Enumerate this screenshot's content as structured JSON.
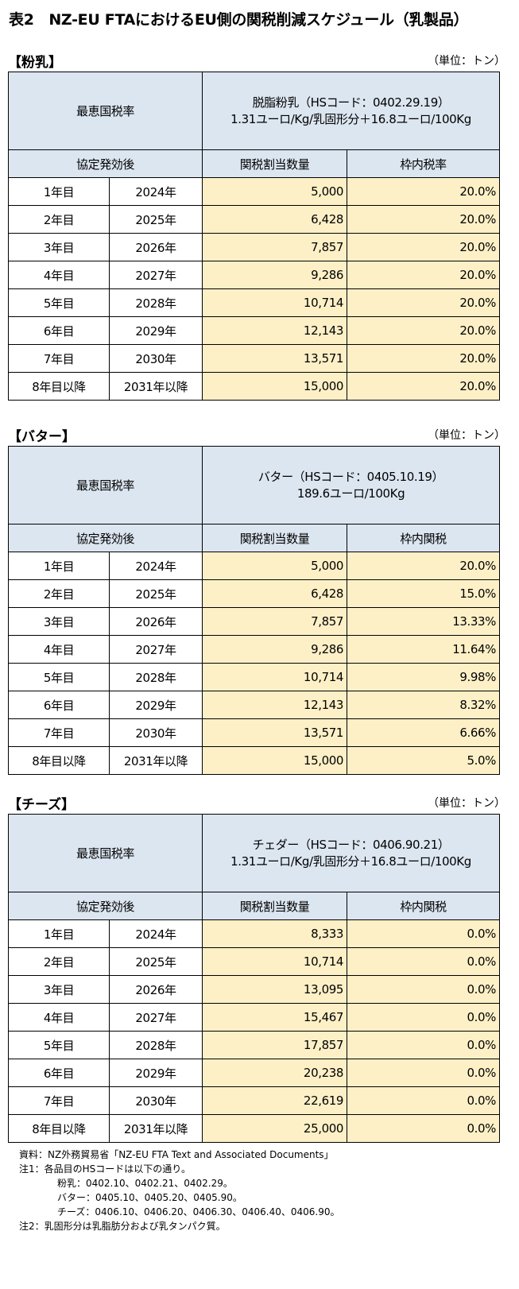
{
  "title": "表2　NZ-EU FTAにおけるEU側の関税削減スケジュール（乳製品）",
  "sections": [
    {
      "heading": "【粉乳】",
      "unit": "（単位：トン）",
      "mfn_label": "最恵国税率",
      "desc_line1": "脱脂粉乳（HSコード：0402.29.19）",
      "desc_line2": "1.31ユーロ/Kg/乳固形分＋16.8ユーロ/100Kg",
      "col_period": "協定発効後",
      "col_quota": "関税割当数量",
      "col_rate": "枠内税率",
      "rows": [
        {
          "year_no": "1年目",
          "year": "2024年",
          "quota": "5,000",
          "rate": "20.0%"
        },
        {
          "year_no": "2年目",
          "year": "2025年",
          "quota": "6,428",
          "rate": "20.0%"
        },
        {
          "year_no": "3年目",
          "year": "2026年",
          "quota": "7,857",
          "rate": "20.0%"
        },
        {
          "year_no": "4年目",
          "year": "2027年",
          "quota": "9,286",
          "rate": "20.0%"
        },
        {
          "year_no": "5年目",
          "year": "2028年",
          "quota": "10,714",
          "rate": "20.0%"
        },
        {
          "year_no": "6年目",
          "year": "2029年",
          "quota": "12,143",
          "rate": "20.0%"
        },
        {
          "year_no": "7年目",
          "year": "2030年",
          "quota": "13,571",
          "rate": "20.0%"
        },
        {
          "year_no": "8年目以降",
          "year": "2031年以降",
          "quota": "15,000",
          "rate": "20.0%"
        }
      ]
    },
    {
      "heading": "【バター】",
      "unit": "（単位：トン）",
      "mfn_label": "最恵国税率",
      "desc_line1": "バター（HSコード：0405.10.19）",
      "desc_line2": "189.6ユーロ/100Kg",
      "col_period": "協定発効後",
      "col_quota": "関税割当数量",
      "col_rate": "枠内関税",
      "rows": [
        {
          "year_no": "1年目",
          "year": "2024年",
          "quota": "5,000",
          "rate": "20.0%"
        },
        {
          "year_no": "2年目",
          "year": "2025年",
          "quota": "6,428",
          "rate": "15.0%"
        },
        {
          "year_no": "3年目",
          "year": "2026年",
          "quota": "7,857",
          "rate": "13.33%"
        },
        {
          "year_no": "4年目",
          "year": "2027年",
          "quota": "9,286",
          "rate": "11.64%"
        },
        {
          "year_no": "5年目",
          "year": "2028年",
          "quota": "10,714",
          "rate": "9.98%"
        },
        {
          "year_no": "6年目",
          "year": "2029年",
          "quota": "12,143",
          "rate": "8.32%"
        },
        {
          "year_no": "7年目",
          "year": "2030年",
          "quota": "13,571",
          "rate": "6.66%"
        },
        {
          "year_no": "8年目以降",
          "year": "2031年以降",
          "quota": "15,000",
          "rate": "5.0%"
        }
      ]
    },
    {
      "heading": "【チーズ】",
      "unit": "（単位：トン）",
      "mfn_label": "最恵国税率",
      "desc_line1": "チェダー（HSコード：0406.90.21）",
      "desc_line2": "1.31ユーロ/Kg/乳固形分＋16.8ユーロ/100Kg",
      "col_period": "協定発効後",
      "col_quota": "関税割当数量",
      "col_rate": "枠内関税",
      "rows": [
        {
          "year_no": "1年目",
          "year": "2024年",
          "quota": "8,333",
          "rate": "0.0%"
        },
        {
          "year_no": "2年目",
          "year": "2025年",
          "quota": "10,714",
          "rate": "0.0%"
        },
        {
          "year_no": "3年目",
          "year": "2026年",
          "quota": "13,095",
          "rate": "0.0%"
        },
        {
          "year_no": "4年目",
          "year": "2027年",
          "quota": "15,467",
          "rate": "0.0%"
        },
        {
          "year_no": "5年目",
          "year": "2028年",
          "quota": "17,857",
          "rate": "0.0%"
        },
        {
          "year_no": "6年目",
          "year": "2029年",
          "quota": "20,238",
          "rate": "0.0%"
        },
        {
          "year_no": "7年目",
          "year": "2030年",
          "quota": "22,619",
          "rate": "0.0%"
        },
        {
          "year_no": "8年目以降",
          "year": "2031年以降",
          "quota": "25,000",
          "rate": "0.0%"
        }
      ]
    }
  ],
  "notes": {
    "source": "資料：NZ外務貿易省「NZ-EU FTA Text and Associated Documents」",
    "note1": "注1：各品目のHSコードは以下の通り。",
    "note1_milk": "粉乳：0402.10、0402.21、0402.29。",
    "note1_butter": "バター：0405.10、0405.20、0405.90。",
    "note1_cheese": "チーズ：0406.10、0406.20、0406.30、0406.40、0406.90。",
    "note2": "注2：乳固形分は乳脂肪分および乳タンパク質。"
  },
  "colors": {
    "header_fill": "#dce6f1",
    "value_fill": "#fdf0c7",
    "border": "#000000"
  }
}
